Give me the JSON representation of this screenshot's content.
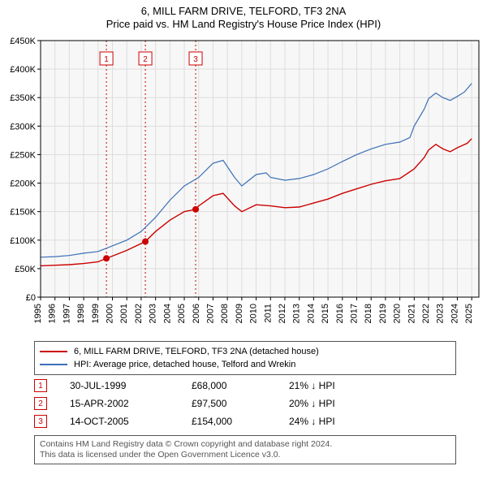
{
  "title": "6, MILL FARM DRIVE, TELFORD, TF3 2NA",
  "subtitle": "Price paid vs. HM Land Registry's House Price Index (HPI)",
  "chart": {
    "type": "line",
    "background_color": "#ffffff",
    "plot_background_color": "#f7f7f7",
    "grid_color": "#dddddd",
    "axis_color": "#000000",
    "tick_fontsize": 11,
    "xlim": [
      1995,
      2025.5
    ],
    "ylim": [
      0,
      450000
    ],
    "ytick_step": 50000,
    "ytick_prefix": "£",
    "ytick_suffix_thousands": "K",
    "x_years": [
      1995,
      1996,
      1997,
      1998,
      1999,
      2000,
      2001,
      2002,
      2003,
      2004,
      2005,
      2006,
      2007,
      2008,
      2009,
      2010,
      2011,
      2012,
      2013,
      2014,
      2015,
      2016,
      2017,
      2018,
      2019,
      2020,
      2021,
      2022,
      2023,
      2024,
      2025
    ],
    "series": [
      {
        "name": "hpi",
        "label": "HPI: Average price, detached house, Telford and Wrekin",
        "color": "#3b6fb6",
        "line_width": 1.2,
        "points": [
          [
            1995,
            70000
          ],
          [
            1996,
            71000
          ],
          [
            1997,
            73000
          ],
          [
            1998,
            77000
          ],
          [
            1999,
            80000
          ],
          [
            2000,
            90000
          ],
          [
            2001,
            100000
          ],
          [
            2002,
            115000
          ],
          [
            2003,
            140000
          ],
          [
            2004,
            170000
          ],
          [
            2005,
            195000
          ],
          [
            2006,
            210000
          ],
          [
            2007,
            235000
          ],
          [
            2007.7,
            240000
          ],
          [
            2008.5,
            210000
          ],
          [
            2009,
            195000
          ],
          [
            2009.5,
            205000
          ],
          [
            2010,
            215000
          ],
          [
            2010.7,
            218000
          ],
          [
            2011,
            210000
          ],
          [
            2012,
            205000
          ],
          [
            2013,
            208000
          ],
          [
            2014,
            215000
          ],
          [
            2015,
            225000
          ],
          [
            2016,
            238000
          ],
          [
            2017,
            250000
          ],
          [
            2018,
            260000
          ],
          [
            2019,
            268000
          ],
          [
            2020,
            272000
          ],
          [
            2020.7,
            280000
          ],
          [
            2021,
            300000
          ],
          [
            2021.7,
            330000
          ],
          [
            2022,
            348000
          ],
          [
            2022.5,
            358000
          ],
          [
            2023,
            350000
          ],
          [
            2023.5,
            345000
          ],
          [
            2024,
            352000
          ],
          [
            2024.5,
            360000
          ],
          [
            2025,
            375000
          ]
        ]
      },
      {
        "name": "property",
        "label": "6, MILL FARM DRIVE, TELFORD, TF3 2NA (detached house)",
        "color": "#cc0000",
        "line_width": 1.4,
        "points": [
          [
            1995,
            55000
          ],
          [
            1996,
            56000
          ],
          [
            1997,
            57000
          ],
          [
            1998,
            59000
          ],
          [
            1999,
            62000
          ],
          [
            1999.58,
            68000
          ],
          [
            2000,
            72000
          ],
          [
            2001,
            82000
          ],
          [
            2002.29,
            97500
          ],
          [
            2003,
            115000
          ],
          [
            2004,
            135000
          ],
          [
            2005,
            150000
          ],
          [
            2005.79,
            154000
          ],
          [
            2006,
            160000
          ],
          [
            2007,
            178000
          ],
          [
            2007.7,
            182000
          ],
          [
            2008.5,
            160000
          ],
          [
            2009,
            150000
          ],
          [
            2010,
            162000
          ],
          [
            2011,
            160000
          ],
          [
            2012,
            157000
          ],
          [
            2013,
            158000
          ],
          [
            2014,
            165000
          ],
          [
            2015,
            172000
          ],
          [
            2016,
            182000
          ],
          [
            2017,
            190000
          ],
          [
            2018,
            198000
          ],
          [
            2019,
            204000
          ],
          [
            2020,
            208000
          ],
          [
            2021,
            225000
          ],
          [
            2021.7,
            245000
          ],
          [
            2022,
            258000
          ],
          [
            2022.5,
            268000
          ],
          [
            2023,
            260000
          ],
          [
            2023.5,
            255000
          ],
          [
            2024,
            262000
          ],
          [
            2024.7,
            270000
          ],
          [
            2025,
            278000
          ]
        ]
      }
    ],
    "sale_markers": [
      {
        "n": "1",
        "x": 1999.58,
        "y": 68000
      },
      {
        "n": "2",
        "x": 2002.29,
        "y": 97500
      },
      {
        "n": "3",
        "x": 2005.79,
        "y": 154000
      }
    ],
    "marker_line_color": "#cc0000",
    "marker_line_dash": "2,3",
    "marker_box_border": "#cc0000",
    "marker_box_fill": "#ffffff",
    "marker_box_text": "#cc0000",
    "sale_dot_color": "#cc0000",
    "sale_dot_radius": 4
  },
  "legend": {
    "items": [
      {
        "color": "#cc0000",
        "label": "6, MILL FARM DRIVE, TELFORD, TF3 2NA (detached house)"
      },
      {
        "color": "#3b6fb6",
        "label": "HPI: Average price, detached house, Telford and Wrekin"
      }
    ]
  },
  "sales_table": [
    {
      "n": "1",
      "date": "30-JUL-1999",
      "price": "£68,000",
      "delta": "21% ↓ HPI"
    },
    {
      "n": "2",
      "date": "15-APR-2002",
      "price": "£97,500",
      "delta": "20% ↓ HPI"
    },
    {
      "n": "3",
      "date": "14-OCT-2005",
      "price": "£154,000",
      "delta": "24% ↓ HPI"
    }
  ],
  "footer": {
    "line1": "Contains HM Land Registry data © Crown copyright and database right 2024.",
    "line2": "This data is licensed under the Open Government Licence v3.0."
  }
}
